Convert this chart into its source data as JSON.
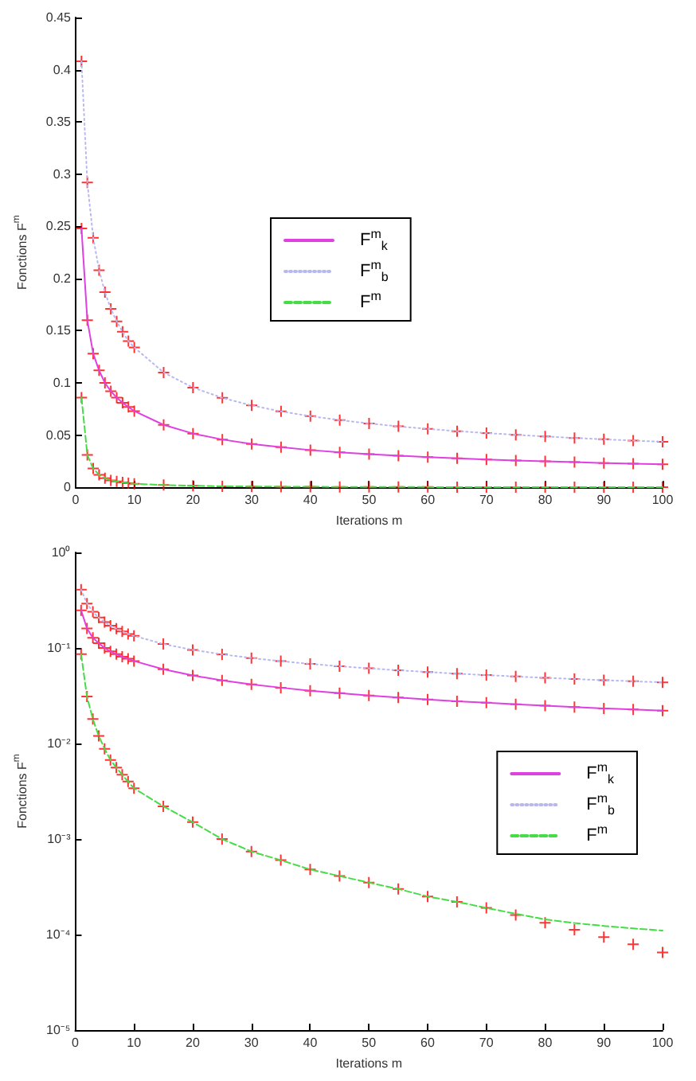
{
  "chart_data": [
    {
      "type": "line",
      "xlabel": "Iterations m",
      "ylabel": "Fonctions F$^{m}$",
      "x": [
        1,
        2,
        3,
        4,
        5,
        6,
        7,
        8,
        9,
        10,
        15,
        20,
        25,
        30,
        35,
        40,
        45,
        50,
        55,
        60,
        65,
        70,
        75,
        80,
        85,
        90,
        95,
        100
      ],
      "xlim": [
        0,
        100
      ],
      "xticks": [
        0,
        10,
        20,
        30,
        40,
        50,
        60,
        70,
        80,
        90,
        100
      ],
      "ylim": [
        0,
        0.45
      ],
      "yticks": [
        0,
        0.05,
        0.1,
        0.15,
        0.2,
        0.25,
        0.3,
        0.35,
        0.4,
        0.45
      ],
      "grid": false,
      "legend": "center",
      "series": [
        {
          "name": "F$^{m}$$_{k}$",
          "color": "#e040e0",
          "line_style": "solid",
          "values": [
            0.248,
            0.16,
            0.128,
            0.112,
            0.1,
            0.092,
            0.086,
            0.081,
            0.077,
            0.073,
            0.0598,
            0.0515,
            0.0458,
            0.0416,
            0.0384,
            0.0357,
            0.0336,
            0.0318,
            0.0303,
            0.0289,
            0.0277,
            0.0267,
            0.0257,
            0.0249,
            0.0241,
            0.0233,
            0.0227,
            0.0221
          ]
        },
        {
          "name": "F$^{m}$$_{b}$",
          "color": "#b8b8f0",
          "line_style": "dotted",
          "values": [
            0.408,
            0.292,
            0.239,
            0.208,
            0.187,
            0.171,
            0.159,
            0.149,
            0.14,
            0.134,
            0.11,
            0.0955,
            0.0857,
            0.0784,
            0.0727,
            0.0682,
            0.0644,
            0.0612,
            0.0584,
            0.056,
            0.0538,
            0.052,
            0.0503,
            0.0487,
            0.0473,
            0.046,
            0.0448,
            0.0437
          ]
        },
        {
          "name": "F$^{m}$",
          "color": "#44dd44",
          "line_style": "dashed",
          "values": [
            0.086,
            0.031,
            0.018,
            0.012,
            0.0088,
            0.0067,
            0.0056,
            0.0047,
            0.004,
            0.0034,
            0.0022,
            0.0015,
            0.001,
            0.00074,
            0.0006,
            0.00048,
            0.00041,
            0.00035,
            0.0003,
            0.00025,
            0.00022,
            0.00019,
            0.000165,
            0.000144,
            0.000132,
            0.000123,
            0.000116,
            0.00011
          ]
        },
        {
          "type": "scatter",
          "color": "#ff0000",
          "marker": "cross",
          "values": [
            0.248,
            0.16,
            0.128,
            0.112,
            0.1,
            0.092,
            0.086,
            0.081,
            0.077,
            0.073,
            0.0598,
            0.0515,
            0.0458,
            0.0416,
            0.0384,
            0.0357,
            0.0336,
            0.0318,
            0.0303,
            0.0289,
            0.0277,
            0.0267,
            0.0257,
            0.0249,
            0.0241,
            0.0233,
            0.0227,
            0.0221
          ]
        },
        {
          "type": "scatter",
          "color": "#ff0000",
          "marker": "cross",
          "values": [
            0.408,
            0.292,
            0.239,
            0.208,
            0.187,
            0.171,
            0.159,
            0.149,
            0.14,
            0.134,
            0.11,
            0.0955,
            0.0857,
            0.0784,
            0.0727,
            0.0682,
            0.0644,
            0.0612,
            0.0584,
            0.056,
            0.0538,
            0.052,
            0.0503,
            0.0487,
            0.0473,
            0.046,
            0.0448,
            0.0437
          ]
        },
        {
          "type": "scatter",
          "color": "#ff0000",
          "marker": "cross",
          "values": [
            0.086,
            0.031,
            0.018,
            0.012,
            0.0088,
            0.0067,
            0.0056,
            0.0047,
            0.004,
            0.0034,
            0.0022,
            0.0015,
            0.001,
            0.00074,
            0.0006,
            0.00048,
            0.00041,
            0.00035,
            0.0003,
            0.00025,
            0.00022,
            0.00019,
            0.00016,
            0.000133,
            0.000112,
            9.4e-05,
            7.9e-05,
            6.5e-05
          ]
        }
      ]
    },
    {
      "type": "line",
      "xlabel": "Iterations m",
      "ylabel": "Fonctions F$^{m}$",
      "x": [
        1,
        2,
        3,
        4,
        5,
        6,
        7,
        8,
        9,
        10,
        15,
        20,
        25,
        30,
        35,
        40,
        45,
        50,
        55,
        60,
        65,
        70,
        75,
        80,
        85,
        90,
        95,
        100
      ],
      "xlim": [
        0,
        100
      ],
      "xticks": [
        0,
        10,
        20,
        30,
        40,
        50,
        60,
        70,
        80,
        90,
        100
      ],
      "log": "y",
      "ylim": [
        1e-05,
        1
      ],
      "yticks": [
        {
          "value": 1e-05,
          "label": "10⁻⁵"
        },
        {
          "value": 0.0001,
          "label": "10⁻⁴"
        },
        {
          "value": 0.001,
          "label": "10⁻³"
        },
        {
          "value": 0.01,
          "label": "10⁻²"
        },
        {
          "value": 0.1,
          "label": "10⁻¹"
        },
        {
          "value": 1,
          "label": "10⁰"
        }
      ],
      "grid": false,
      "legend": "right",
      "series": [
        {
          "name": "F$^{m}$$_{k}$",
          "color": "#e040e0",
          "line_style": "solid",
          "values": [
            0.248,
            0.16,
            0.128,
            0.112,
            0.1,
            0.092,
            0.086,
            0.081,
            0.077,
            0.073,
            0.0598,
            0.0515,
            0.0458,
            0.0416,
            0.0384,
            0.0357,
            0.0336,
            0.0318,
            0.0303,
            0.0289,
            0.0277,
            0.0267,
            0.0257,
            0.0249,
            0.0241,
            0.0233,
            0.0227,
            0.0221
          ]
        },
        {
          "name": "F$^{m}$$_{b}$",
          "color": "#b8b8f0",
          "line_style": "dotted",
          "values": [
            0.408,
            0.292,
            0.239,
            0.208,
            0.187,
            0.171,
            0.159,
            0.149,
            0.14,
            0.134,
            0.11,
            0.0955,
            0.0857,
            0.0784,
            0.0727,
            0.0682,
            0.0644,
            0.0612,
            0.0584,
            0.056,
            0.0538,
            0.052,
            0.0503,
            0.0487,
            0.0473,
            0.046,
            0.0448,
            0.0437
          ]
        },
        {
          "name": "F$^{m}$",
          "color": "#44dd44",
          "line_style": "dashed",
          "values": [
            0.086,
            0.031,
            0.018,
            0.012,
            0.0088,
            0.0067,
            0.0056,
            0.0047,
            0.004,
            0.0034,
            0.0022,
            0.0015,
            0.001,
            0.00074,
            0.0006,
            0.00048,
            0.00041,
            0.00035,
            0.0003,
            0.00025,
            0.00022,
            0.00019,
            0.000165,
            0.000144,
            0.000132,
            0.000123,
            0.000116,
            0.00011
          ]
        },
        {
          "type": "scatter",
          "color": "#ff0000",
          "marker": "cross",
          "values": [
            0.248,
            0.16,
            0.128,
            0.112,
            0.1,
            0.092,
            0.086,
            0.081,
            0.077,
            0.073,
            0.0598,
            0.0515,
            0.0458,
            0.0416,
            0.0384,
            0.0357,
            0.0336,
            0.0318,
            0.0303,
            0.0289,
            0.0277,
            0.0267,
            0.0257,
            0.0249,
            0.0241,
            0.0233,
            0.0227,
            0.0221
          ]
        },
        {
          "type": "scatter",
          "color": "#ff0000",
          "marker": "cross",
          "values": [
            0.408,
            0.292,
            0.239,
            0.208,
            0.187,
            0.171,
            0.159,
            0.149,
            0.14,
            0.134,
            0.11,
            0.0955,
            0.0857,
            0.0784,
            0.0727,
            0.0682,
            0.0644,
            0.0612,
            0.0584,
            0.056,
            0.0538,
            0.052,
            0.0503,
            0.0487,
            0.0473,
            0.046,
            0.0448,
            0.0437
          ]
        },
        {
          "type": "scatter",
          "color": "#ff0000",
          "marker": "cross",
          "values": [
            0.086,
            0.031,
            0.018,
            0.012,
            0.0088,
            0.0067,
            0.0056,
            0.0047,
            0.004,
            0.0034,
            0.0022,
            0.0015,
            0.001,
            0.00074,
            0.0006,
            0.00048,
            0.00041,
            0.00035,
            0.0003,
            0.00025,
            0.00022,
            0.00019,
            0.00016,
            0.000133,
            0.000112,
            9.4e-05,
            7.9e-05,
            6.5e-05
          ]
        }
      ]
    }
  ]
}
